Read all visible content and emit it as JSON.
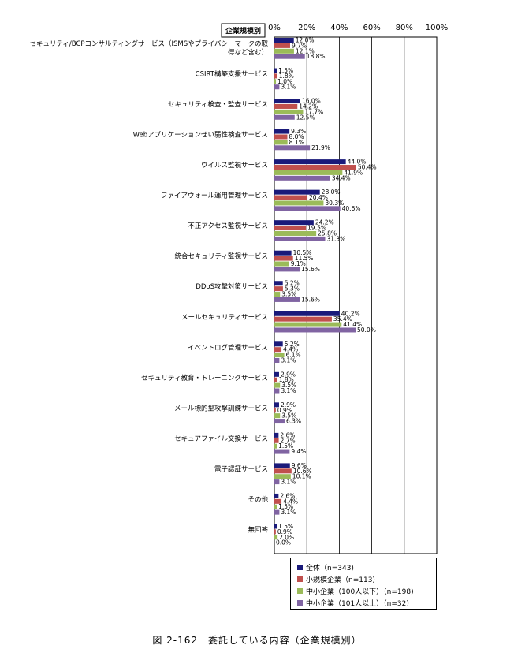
{
  "chart_data": {
    "type": "bar",
    "orientation": "horizontal",
    "title": "図 2-162　委託している内容（企業規模別）",
    "group_label": "企業規模別",
    "xlim": [
      0,
      100
    ],
    "x_ticks": [
      "0%",
      "20%",
      "40%",
      "60%",
      "80%",
      "100%"
    ],
    "categories": [
      [
        "セキュリティ/BCPコンサルティングサービス（ISMSやプライバシーマークの取",
        "得など含む）"
      ],
      [
        "CSIRT構築支援サービス"
      ],
      [
        "セキュリティ検査・監査サービス"
      ],
      [
        "Webアプリケーションぜい弱性検査サービス"
      ],
      [
        "ウイルス監視サービス"
      ],
      [
        "ファイアウォール運用管理サービス"
      ],
      [
        "不正アクセス監視サービス"
      ],
      [
        "統合セキュリティ監視サービス"
      ],
      [
        "DDoS攻撃対策サービス"
      ],
      [
        "メールセキュリティサービス"
      ],
      [
        "イベントログ管理サービス"
      ],
      [
        "セキュリティ教育・トレーニングサービス"
      ],
      [
        "メール標的型攻撃訓練サービス"
      ],
      [
        "セキュアファイル交換サービス"
      ],
      [
        "電子認証サービス"
      ],
      [
        "その他"
      ],
      [
        "無回答"
      ]
    ],
    "series": [
      {
        "name": "全体（n=343)",
        "color": "#1a1a7a",
        "values": [
          12.0,
          1.5,
          16.0,
          9.3,
          44.0,
          28.0,
          24.2,
          10.5,
          5.2,
          40.2,
          5.2,
          2.9,
          2.9,
          2.6,
          9.6,
          2.6,
          1.5
        ]
      },
      {
        "name": "小規模企業（n=113)",
        "color": "#c0504d",
        "values": [
          9.7,
          1.8,
          14.2,
          8.0,
          50.4,
          20.4,
          19.5,
          11.5,
          5.3,
          35.4,
          4.4,
          1.8,
          0.9,
          2.7,
          10.6,
          4.4,
          0.9
        ]
      },
      {
        "name": "中小企業（100人以下）（n=198)",
        "color": "#9bbb59",
        "values": [
          12.1,
          1.0,
          17.7,
          8.1,
          41.9,
          30.3,
          25.8,
          9.1,
          3.5,
          41.4,
          6.1,
          3.5,
          3.5,
          1.5,
          10.1,
          1.5,
          2.0
        ]
      },
      {
        "name": "中小企業（101人以上）（n=32)",
        "color": "#8064a2",
        "values": [
          18.8,
          3.1,
          12.5,
          21.9,
          34.4,
          40.6,
          31.3,
          15.6,
          15.6,
          50.0,
          3.1,
          3.1,
          6.3,
          9.4,
          3.1,
          3.1,
          0.0
        ]
      }
    ],
    "grid": true,
    "legend_position": "bottom-right"
  }
}
